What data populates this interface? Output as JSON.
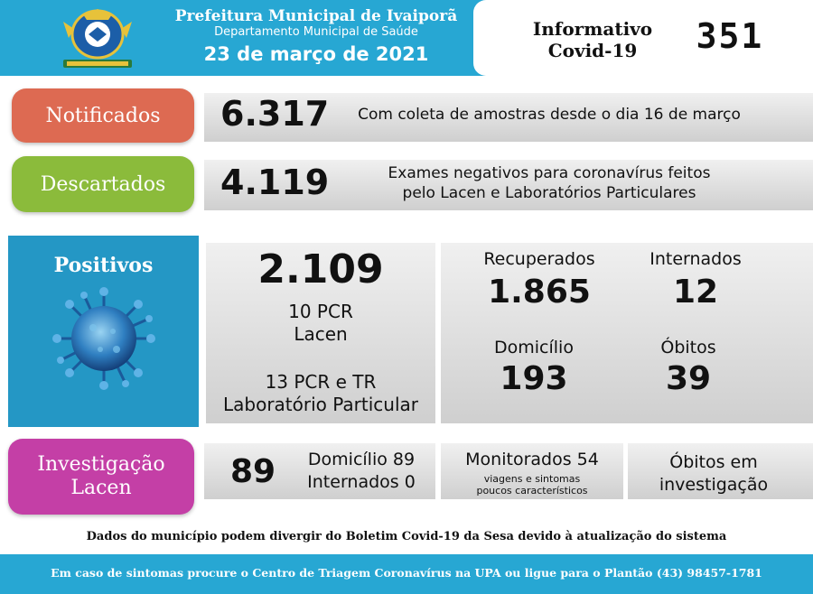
{
  "header": {
    "title": "Prefeitura Municipal de Ivaiporã",
    "department": "Departamento Municipal de Saúde",
    "date": "23 de março de 2021",
    "info_label_line1": "Informativo",
    "info_label_line2": "Covid-19",
    "edition_number": "351"
  },
  "notificados": {
    "label": "Notificados",
    "value": "6.317",
    "description": "Com coleta de amostras desde o dia 16 de março",
    "color": "#dd6a52"
  },
  "descartados": {
    "label": "Descartados",
    "value": "4.119",
    "description_line1": "Exames negativos para coronavírus feitos",
    "description_line2": "pelo Lacen e Laboratórios Particulares",
    "color": "#8bbb3b"
  },
  "positivos": {
    "label": "Positivos",
    "value": "2.109",
    "lacen_line1": "10 PCR",
    "lacen_line2": "Lacen",
    "particular_line1": "13 PCR e TR",
    "particular_line2": "Laboratório Particular",
    "color": "#2497c5",
    "recuperados_label": "Recuperados",
    "recuperados_value": "1.865",
    "internados_label": "Internados",
    "internados_value": "12",
    "domicilio_label": "Domicílio",
    "domicilio_value": "193",
    "obitos_label": "Óbitos",
    "obitos_value": "39"
  },
  "investigacao": {
    "label_line1": "Investigação",
    "label_line2": "Lacen",
    "value": "89",
    "domicilio": "Domicílio 89",
    "internados": "Internados 0",
    "monitorados": "Monitorados 54",
    "monitorados_note_line1": "viagens e sintomas",
    "monitorados_note_line2": "poucos característicos",
    "obitos_line1": "Óbitos em",
    "obitos_line2": "investigação",
    "color": "#c43fa6"
  },
  "disclaimer": "Dados do município podem divergir do Boletim Covid-19 da Sesa devido à atualização do sistema",
  "footer": "Em caso de sintomas procure o Centro de Triagem Coronavírus na UPA ou ligue para o Plantão (43) 98457-1781",
  "icons": {
    "logo": "municipal-coat-of-arms",
    "virus": "coronavirus-icon"
  }
}
